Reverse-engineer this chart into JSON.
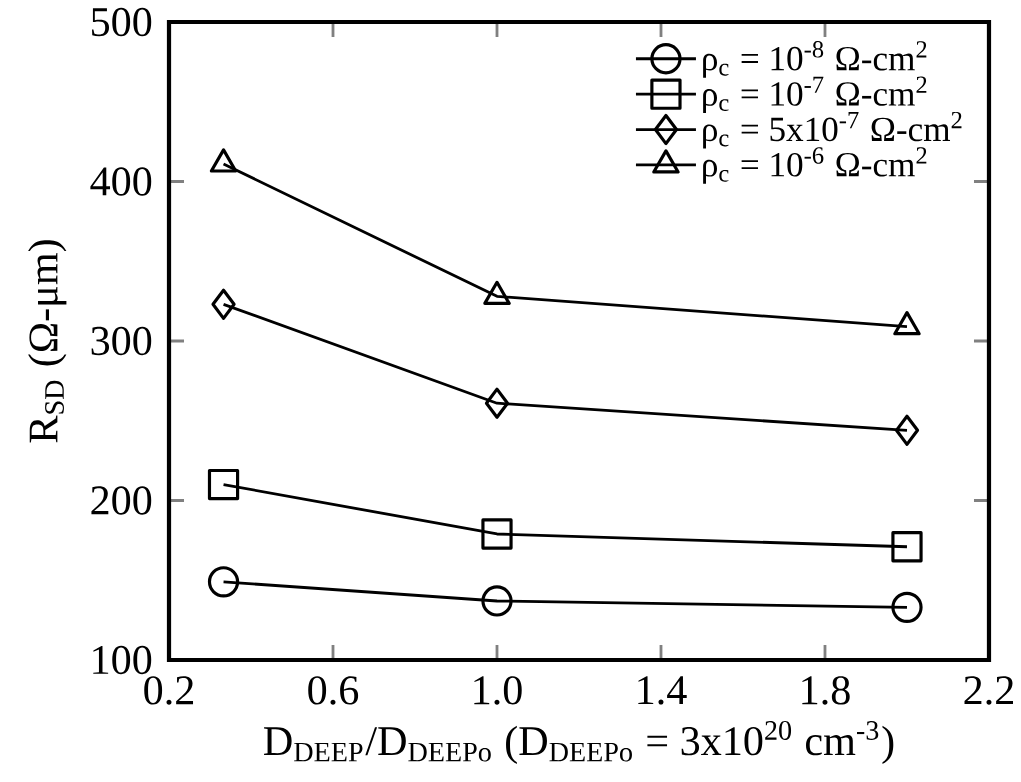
{
  "chart_data": {
    "type": "line",
    "xlabel": "D$_{DEEP}$/D$_{DEEPo}$ (D$_{DEEPo}$ = 3x10$^{20}$ cm$^{-3}$)",
    "ylabel": "R$_{SD}$ (Ω-μm)",
    "x": [
      0.333,
      1.0,
      2.0
    ],
    "series": [
      {
        "name": "ρ$_{c}$ = 10$^{-8}$ Ω-cm$^{2}$",
        "color": "#000000",
        "marker": "circle",
        "values": [
          149,
          137,
          133
        ]
      },
      {
        "name": "ρ$_{c}$ = 10$^{-7}$ Ω-cm$^{2}$",
        "color": "#000000",
        "marker": "square",
        "values": [
          210,
          179,
          171
        ]
      },
      {
        "name": "ρ$_{c}$ = 5x10$^{-7}$ Ω-cm$^{2}$",
        "color": "#000000",
        "marker": "diamond",
        "values": [
          323,
          261,
          244
        ]
      },
      {
        "name": "ρ$_{c}$ = 10$^{-6}$ Ω-cm$^{2}$",
        "color": "#000000",
        "marker": "triangle",
        "values": [
          411,
          328,
          309
        ]
      }
    ],
    "xlim": [
      0.2,
      2.2
    ],
    "xticks": [
      0.2,
      0.6,
      {
        "value": 1.0,
        "label": "1.0"
      },
      1.4,
      1.8,
      2.2
    ],
    "ylim": [
      100,
      500
    ],
    "yticks": [
      100,
      200,
      300,
      400,
      500
    ],
    "grid": false,
    "legend": "top right",
    "line_style": "solid"
  }
}
